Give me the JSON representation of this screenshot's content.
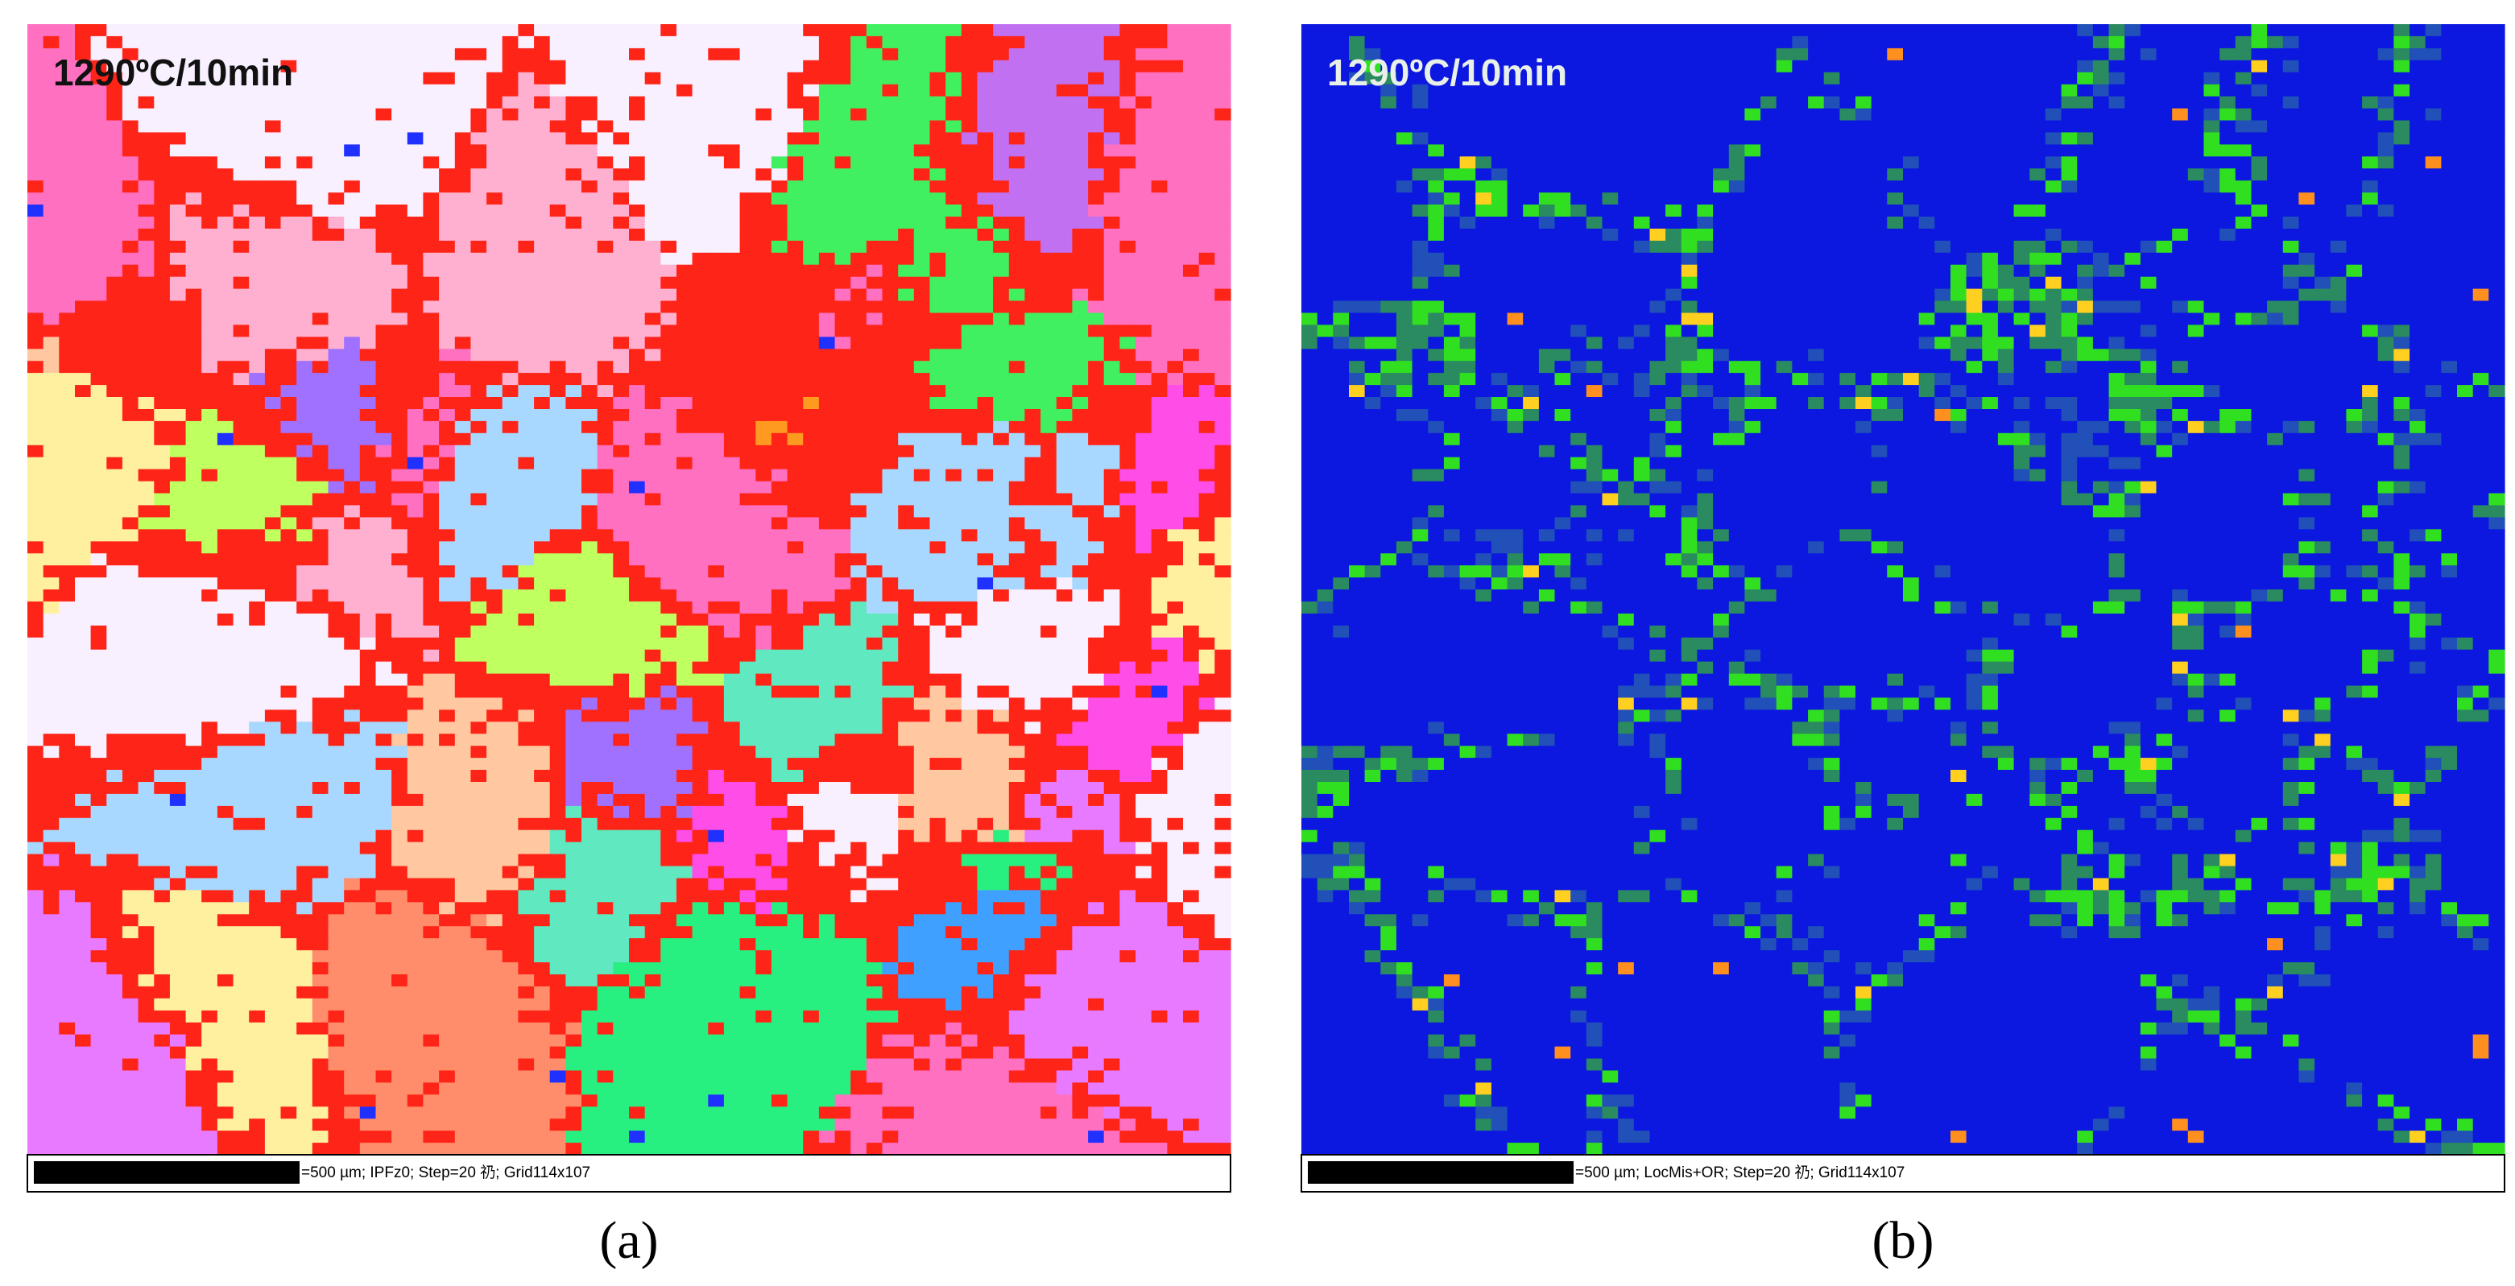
{
  "panels": [
    {
      "label": "(a)",
      "title": "1290ºC/10min",
      "caption": "=500 µm; IPFz0; Step=20 礽; Grid114x107"
    },
    {
      "label": "(b)",
      "title": "1290ºC/10min",
      "caption": "=500 µm; LocMis+OR; Step=20 礽; Grid114x107"
    }
  ]
}
